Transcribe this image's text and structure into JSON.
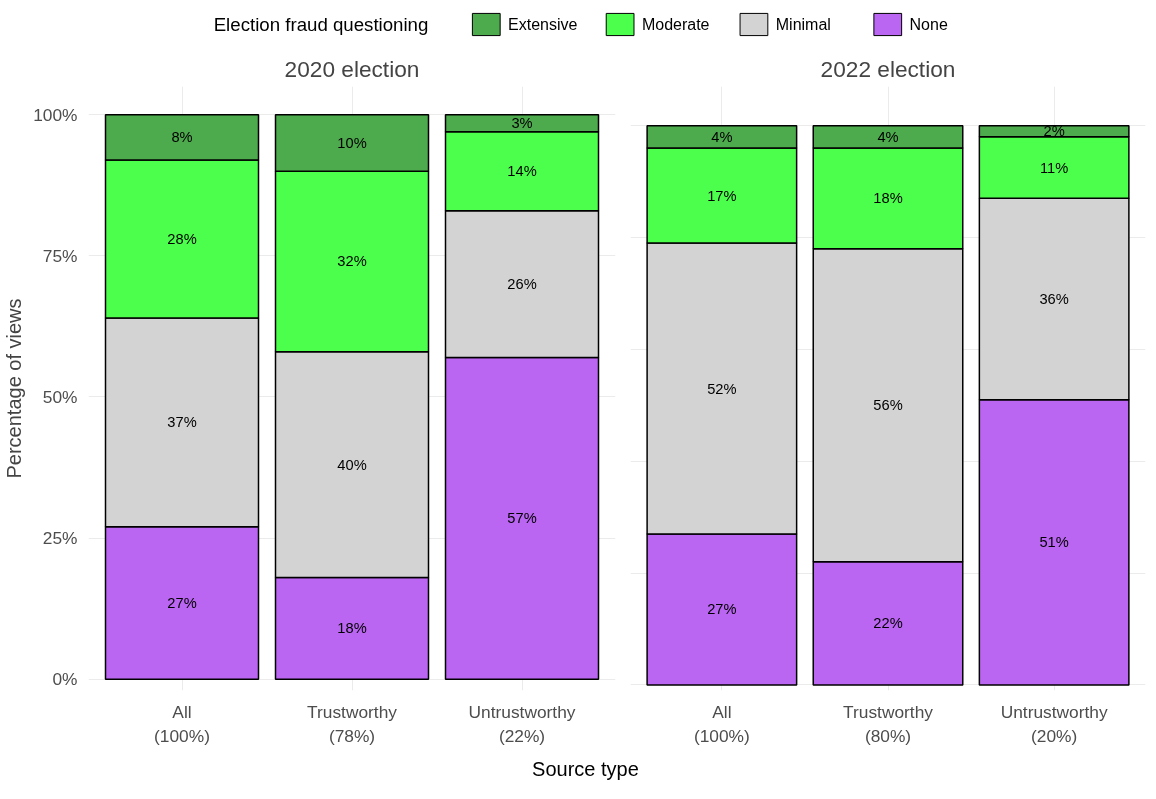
{
  "chart_data": [
    {
      "type": "bar",
      "title": "2020 election",
      "xlabel": "Source type",
      "ylabel": "Percentage of views",
      "legend_title": "Election fraud questioning",
      "legend": "top",
      "stacked": true,
      "grid": true,
      "categories": [
        "All\n(100%)",
        "Trustworthy\n(78%)",
        "Untrustworthy\n(22%)"
      ],
      "series": [
        {
          "name": "None",
          "color": "#bb66f2",
          "values": [
            27,
            18,
            57
          ],
          "value_labels": [
            "27%",
            "18%",
            "57%"
          ]
        },
        {
          "name": "Minimal",
          "color": "#d3d3d3",
          "values": [
            37,
            40,
            26
          ],
          "value_labels": [
            "37%",
            "40%",
            "26%"
          ]
        },
        {
          "name": "Moderate",
          "color": "#4dff4d",
          "values": [
            28,
            32,
            14
          ],
          "value_labels": [
            "28%",
            "32%",
            "14%"
          ]
        },
        {
          "name": "Extensive",
          "color": "#4daa4d",
          "values": [
            8,
            10,
            3
          ],
          "value_labels": [
            "8%",
            "10%",
            "3%"
          ]
        }
      ],
      "ylim": [
        -2,
        105
      ],
      "yticks": [
        {
          "value": 0,
          "label": "0%"
        },
        {
          "value": 25,
          "label": "25%"
        },
        {
          "value": 50,
          "label": "50%"
        },
        {
          "value": 75,
          "label": "75%"
        },
        {
          "value": 100,
          "label": "100%"
        }
      ]
    },
    {
      "type": "bar",
      "title": "2022 election",
      "stacked": true,
      "grid": true,
      "tick_labels": "x",
      "categories": [
        "All\n(100%)",
        "Trustworthy\n(80%)",
        "Untrustworthy\n(20%)"
      ],
      "series": [
        {
          "color": "#bb66f2",
          "values": [
            27,
            22,
            51
          ],
          "value_labels": [
            "27%",
            "22%",
            "51%"
          ]
        },
        {
          "color": "#d3d3d3",
          "values": [
            52,
            56,
            36
          ],
          "value_labels": [
            "52%",
            "56%",
            "36%"
          ]
        },
        {
          "color": "#4dff4d",
          "values": [
            17,
            18,
            11
          ],
          "value_labels": [
            "17%",
            "18%",
            "11%"
          ]
        },
        {
          "color": "#4daa4d",
          "values": [
            4,
            4,
            2
          ],
          "value_labels": [
            "4%",
            "4%",
            "2%"
          ]
        }
      ]
    }
  ]
}
